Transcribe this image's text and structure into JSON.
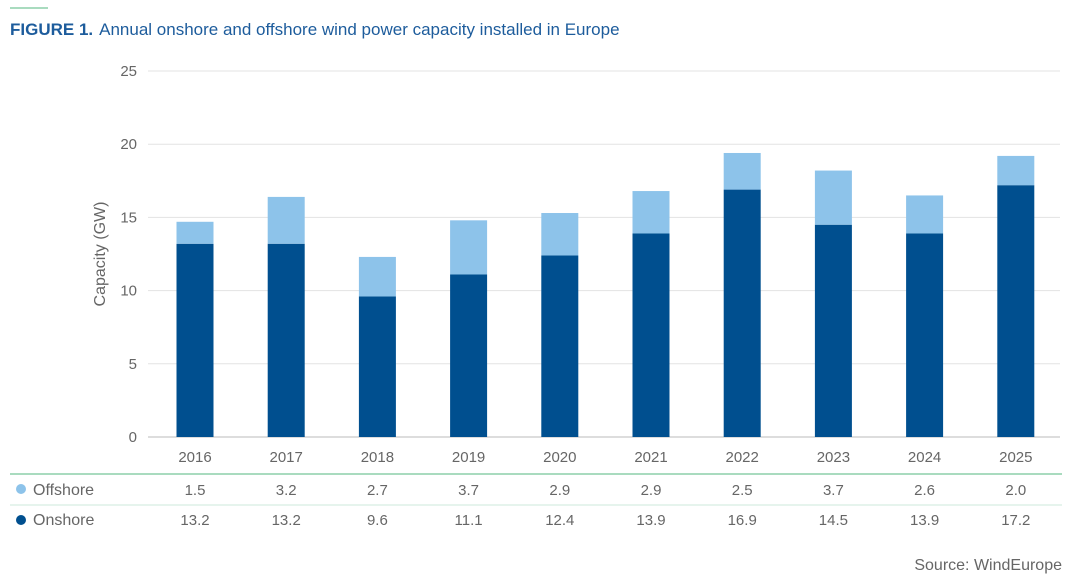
{
  "figure": {
    "label": "FIGURE 1.",
    "title": "Annual onshore and offshore wind power capacity installed in Europe"
  },
  "source": "Source: WindEurope",
  "colors": {
    "onshore": "#004f8f",
    "offshore": "#8dc3ea",
    "title": "#1d5c9c",
    "rule": "#a9dbbf"
  },
  "chart_data": {
    "type": "bar",
    "stacked": true,
    "title": "Annual onshore and offshore wind power capacity installed in Europe",
    "xlabel": "",
    "ylabel": "Capacity (GW)",
    "ylim": [
      0,
      25
    ],
    "yticks": [
      0,
      5,
      10,
      15,
      20,
      25
    ],
    "grid": true,
    "legend": "table-below",
    "categories": [
      "2016",
      "2017",
      "2018",
      "2019",
      "2020",
      "2021",
      "2022",
      "2023",
      "2024",
      "2025"
    ],
    "series": [
      {
        "name": "Onshore",
        "values": [
          13.2,
          13.2,
          9.6,
          11.1,
          12.4,
          13.9,
          16.9,
          14.5,
          13.9,
          17.2
        ],
        "labels": [
          "13.2",
          "13.2",
          "9.6",
          "11.1",
          "12.4",
          "13.9",
          "16.9",
          "14.5",
          "13.9",
          "17.2"
        ]
      },
      {
        "name": "Offshore",
        "values": [
          1.5,
          3.2,
          2.7,
          3.7,
          2.9,
          2.9,
          2.5,
          3.7,
          2.6,
          2.0
        ],
        "labels": [
          "1.5",
          "3.2",
          "2.7",
          "3.7",
          "2.9",
          "2.9",
          "2.5",
          "3.7",
          "2.6",
          "2.0"
        ]
      }
    ]
  }
}
